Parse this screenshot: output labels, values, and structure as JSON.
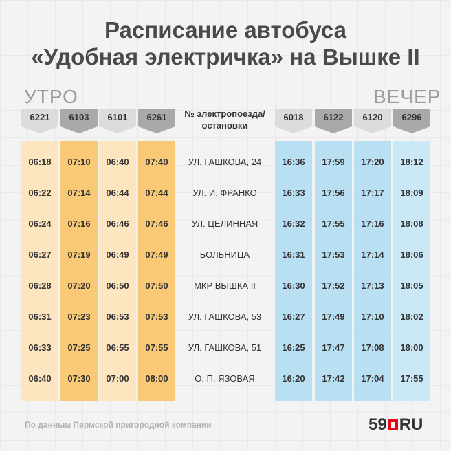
{
  "title_line1": "Расписание автобуса",
  "title_line2": "«Удобная электричка» на Вышке II",
  "morning_label": "УТРО",
  "evening_label": "ВЕЧЕР",
  "header_label": "№ электропоезда/ остановки",
  "morning_trains": [
    "6221",
    "6103",
    "6101",
    "6261"
  ],
  "evening_trains": [
    "6018",
    "6122",
    "6120",
    "6296"
  ],
  "stops": [
    "УЛ. ГАШКОВА, 24",
    "УЛ. И. ФРАНКО",
    "УЛ. ЦЕЛИННАЯ",
    "БОЛЬНИЦА",
    "МКР ВЫШКА II",
    "УЛ. ГАШКОВА, 53",
    "УЛ. ГАШКОВА, 51",
    "О. П. ЯЗОВАЯ"
  ],
  "morning_times": [
    [
      "06:18",
      "06:22",
      "06:24",
      "06:27",
      "06:28",
      "06:31",
      "06:33",
      "06:40"
    ],
    [
      "07:10",
      "07:14",
      "07:16",
      "07:19",
      "07:20",
      "07:23",
      "07:25",
      "07:30"
    ],
    [
      "06:40",
      "06:44",
      "06:46",
      "06:49",
      "06:50",
      "06:53",
      "06:55",
      "07:00"
    ],
    [
      "07:40",
      "07:44",
      "07:46",
      "07:49",
      "07:50",
      "07:53",
      "07:55",
      "08:00"
    ]
  ],
  "evening_times": [
    [
      "16:36",
      "16:33",
      "16:32",
      "16:31",
      "16:30",
      "16:27",
      "16:25",
      "16:20"
    ],
    [
      "17:59",
      "17:56",
      "17:55",
      "17:53",
      "17:52",
      "17:49",
      "17:47",
      "17:42"
    ],
    [
      "17:20",
      "17:17",
      "17:16",
      "17:14",
      "17:13",
      "17:10",
      "17:08",
      "17:04"
    ],
    [
      "18:12",
      "18:09",
      "18:08",
      "18:06",
      "18:05",
      "18:02",
      "18:00",
      "17:55"
    ]
  ],
  "source_note": "По данным Пермской пригородной компании",
  "logo": {
    "num": "59",
    "ru": "RU"
  },
  "colors": {
    "morning_light": "#fde5c0",
    "morning_dark": "#f9c975",
    "evening_blue": "#b9dff3",
    "logo_red": "#e30613"
  }
}
